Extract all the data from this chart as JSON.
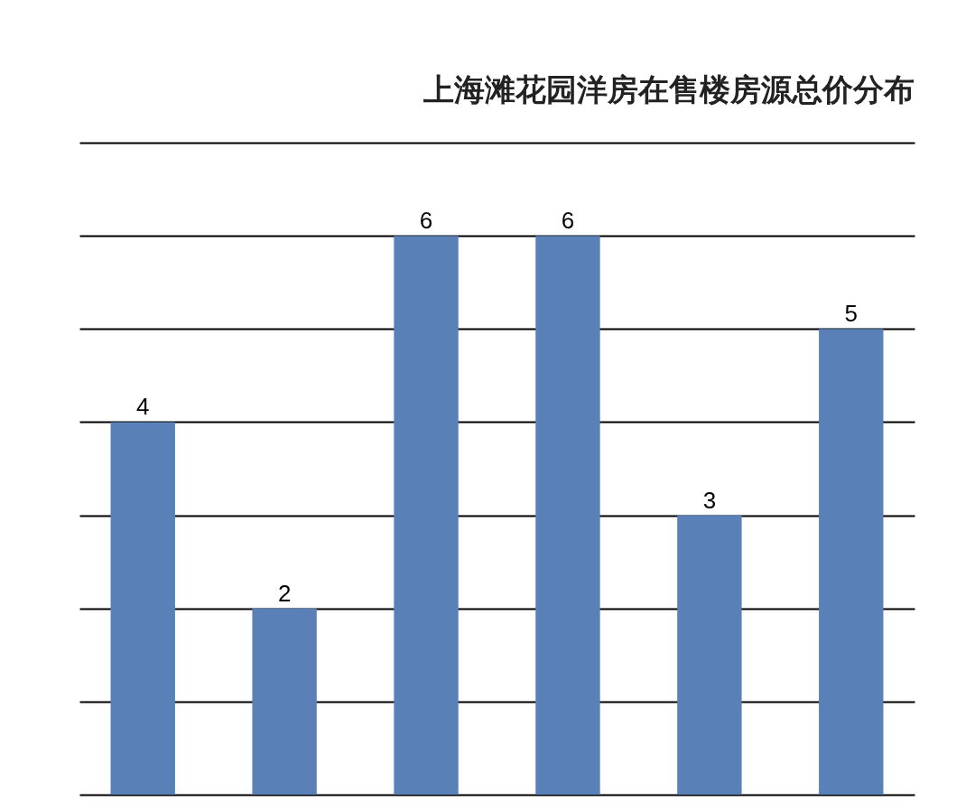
{
  "chart_data": {
    "type": "bar",
    "title": "上海滩花园洋房在售楼房源总价分布",
    "categories": [
      null,
      null,
      null,
      null,
      null,
      null
    ],
    "values": [
      4,
      2,
      6,
      6,
      3,
      5
    ],
    "color": "#5a80b8",
    "ylim": [
      0,
      7
    ],
    "yticks": [
      {
        "value": 0,
        "label": null
      },
      {
        "value": 1,
        "label": null
      },
      {
        "value": 2,
        "label": null
      },
      {
        "value": 3,
        "label": null
      },
      {
        "value": 4,
        "label": null
      },
      {
        "value": 5,
        "label": null
      },
      {
        "value": 6,
        "label": null
      },
      {
        "value": 7,
        "label": null
      }
    ],
    "grid": "y",
    "tick_labels": false,
    "data_labels": true
  }
}
